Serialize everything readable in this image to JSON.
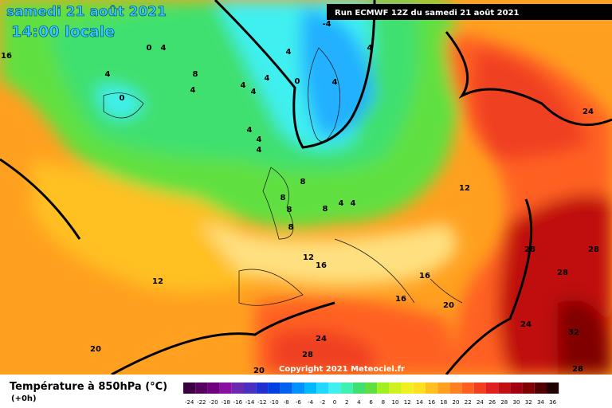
{
  "header": {
    "date": "samedi 21 août 2021",
    "time": "14:00 locale",
    "run": "Run ECMWF 12Z du samedi 21 août 2021"
  },
  "copyright": "Copyright 2021 Meteociel.fr",
  "legend": {
    "title": "Température à 850hPa (°C)",
    "lead": "(+0h)",
    "labels": [
      -24,
      -22,
      -20,
      -18,
      -16,
      -14,
      -12,
      -10,
      -8,
      -6,
      -4,
      -2,
      0,
      2,
      4,
      6,
      8,
      10,
      12,
      14,
      16,
      18,
      20,
      22,
      24,
      26,
      28,
      30,
      32,
      34,
      36
    ],
    "colors": [
      "#3c0040",
      "#560060",
      "#700080",
      "#8a10a0",
      "#6a2ab0",
      "#4a30c0",
      "#2030d0",
      "#0040e0",
      "#0060f0",
      "#0090ff",
      "#00b8ff",
      "#20d8ff",
      "#40f0f0",
      "#40f0b0",
      "#40e070",
      "#60e040",
      "#a0f020",
      "#d0f020",
      "#f0f020",
      "#ffe020",
      "#ffc020",
      "#ffa020",
      "#ff8020",
      "#ff6020",
      "#f04020",
      "#e02020",
      "#c01010",
      "#a00010",
      "#800000",
      "#500000",
      "#200000"
    ]
  },
  "map_labels": [
    16,
    4,
    0,
    0,
    4,
    8,
    4,
    4,
    4,
    4,
    4,
    4,
    4,
    0,
    4,
    4,
    -4,
    4,
    8,
    8,
    8,
    8,
    8,
    4,
    4,
    12,
    12,
    12,
    16,
    16,
    16,
    20,
    20,
    20,
    24,
    28,
    24,
    28,
    28,
    28,
    24,
    32,
    28
  ]
}
